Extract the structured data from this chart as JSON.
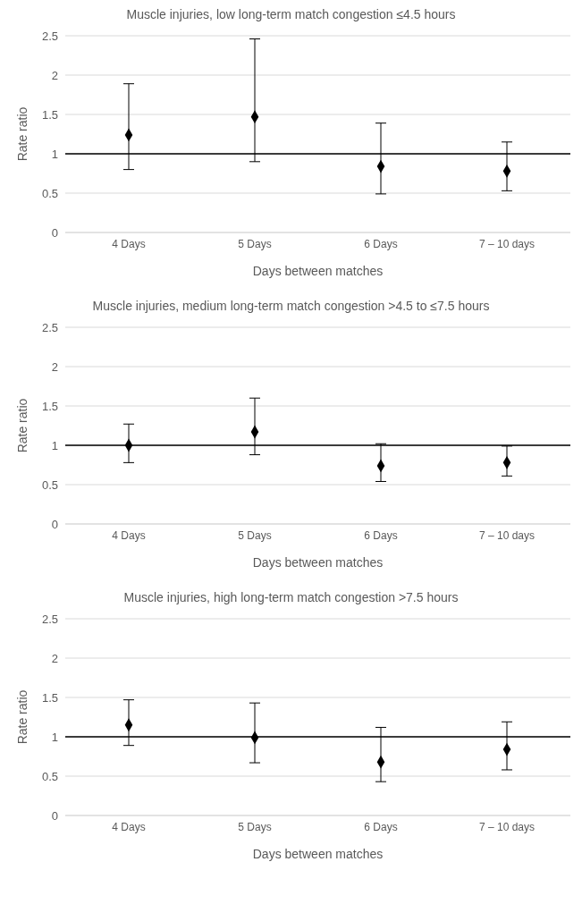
{
  "chart_data": [
    {
      "type": "scatter",
      "title": "Muscle injuries, low long-term match congestion ≤4.5 hours",
      "xlabel": "Days between matches",
      "ylabel": "Rate ratio",
      "categories": [
        "4 Days",
        "5 Days",
        "6 Days",
        "7 – 10 days"
      ],
      "series": [
        {
          "color": "#000000",
          "values": [
            1.24,
            1.47,
            0.84,
            0.78
          ],
          "errors": [
            [
              0.8,
              1.89
            ],
            [
              0.9,
              2.46
            ],
            [
              0.49,
              1.39
            ],
            [
              0.53,
              1.15
            ]
          ]
        }
      ],
      "ylim": [
        0,
        2.5
      ],
      "yticks": [
        0,
        0.5,
        1,
        1.5,
        2,
        2.5
      ],
      "grid": "y",
      "marker": "diamond",
      "legend": false,
      "ref_lines": [
        {
          "axis": "y",
          "value": 1,
          "color": "#000000"
        }
      ]
    },
    {
      "type": "scatter",
      "title": "Muscle injuries, medium long-term match congestion >4.5 to ≤7.5 hours",
      "xlabel": "Days between matches",
      "ylabel": "Rate ratio",
      "categories": [
        "4 Days",
        "5 Days",
        "6 Days",
        "7 – 10 days"
      ],
      "series": [
        {
          "color": "#000000",
          "values": [
            1.0,
            1.17,
            0.74,
            0.78
          ],
          "errors": [
            [
              0.78,
              1.27
            ],
            [
              0.88,
              1.6
            ],
            [
              0.54,
              1.02
            ],
            [
              0.61,
              0.99
            ]
          ]
        }
      ],
      "ylim": [
        0,
        2.5
      ],
      "yticks": [
        0,
        0.5,
        1,
        1.5,
        2,
        2.5
      ],
      "grid": "y",
      "marker": "diamond",
      "legend": false,
      "ref_lines": [
        {
          "axis": "y",
          "value": 1,
          "color": "#000000"
        }
      ]
    },
    {
      "type": "scatter",
      "title": "Muscle injuries, high long-term match congestion >7.5 hours",
      "xlabel": "Days between matches",
      "ylabel": "Rate ratio",
      "categories": [
        "4 Days",
        "5 Days",
        "6 Days",
        "7 – 10 days"
      ],
      "series": [
        {
          "color": "#000000",
          "values": [
            1.15,
            0.99,
            0.68,
            0.84
          ],
          "errors": [
            [
              0.89,
              1.47
            ],
            [
              0.67,
              1.43
            ],
            [
              0.43,
              1.12
            ],
            [
              0.58,
              1.19
            ]
          ]
        }
      ],
      "ylim": [
        0,
        2.5
      ],
      "yticks": [
        0,
        0.5,
        1,
        1.5,
        2,
        2.5
      ],
      "grid": "y",
      "marker": "diamond",
      "legend": false,
      "ref_lines": [
        {
          "axis": "y",
          "value": 1,
          "color": "#000000"
        }
      ]
    }
  ]
}
